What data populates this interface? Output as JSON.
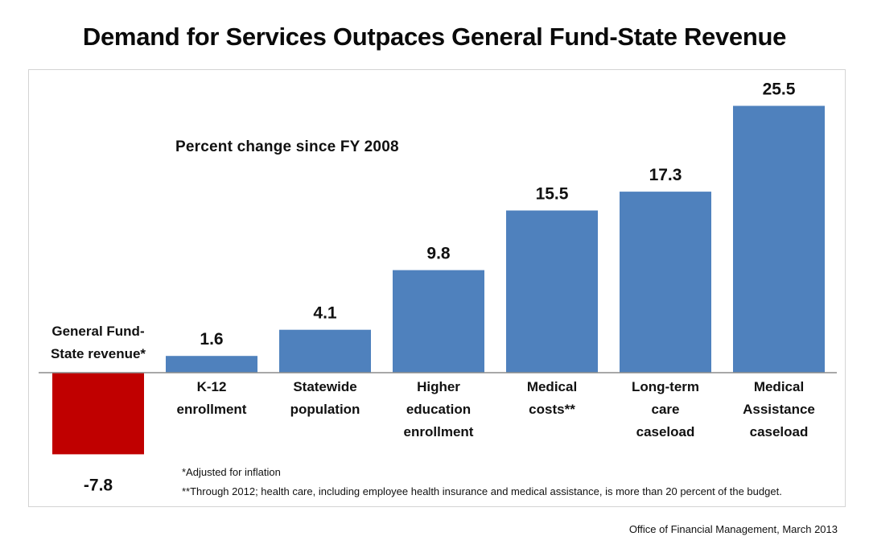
{
  "chart_data": {
    "type": "bar",
    "title": "Demand for Services Outpaces General Fund-State Revenue",
    "subtitle": "Percent change since FY 2008",
    "categories": [
      [
        "General Fund-",
        "State revenue*"
      ],
      [
        "K-12",
        "enrollment"
      ],
      [
        "Statewide",
        "population"
      ],
      [
        "Higher",
        "education",
        "enrollment"
      ],
      [
        "Medical",
        "costs**"
      ],
      [
        "Long-term",
        "care",
        "caseload"
      ],
      [
        "Medical",
        "Assistance",
        "caseload"
      ]
    ],
    "values": [
      -7.8,
      1.6,
      4.1,
      9.8,
      15.5,
      17.3,
      25.5
    ],
    "value_labels": [
      "-7.8",
      "1.6",
      "4.1",
      "9.8",
      "15.5",
      "17.3",
      "25.5"
    ],
    "colors": [
      "#c00000",
      "#4f81bd",
      "#4f81bd",
      "#4f81bd",
      "#4f81bd",
      "#4f81bd",
      "#4f81bd"
    ],
    "ylim": [
      -7.8,
      25.5
    ],
    "grid": false,
    "legend": "none"
  },
  "footnotes": {
    "note1": "*Adjusted for inflation",
    "note2": "**Through 2012; health care, including employee health insurance and medical assistance, is more than 20 percent of the budget."
  },
  "source": "Office of Financial Management, March 2013"
}
